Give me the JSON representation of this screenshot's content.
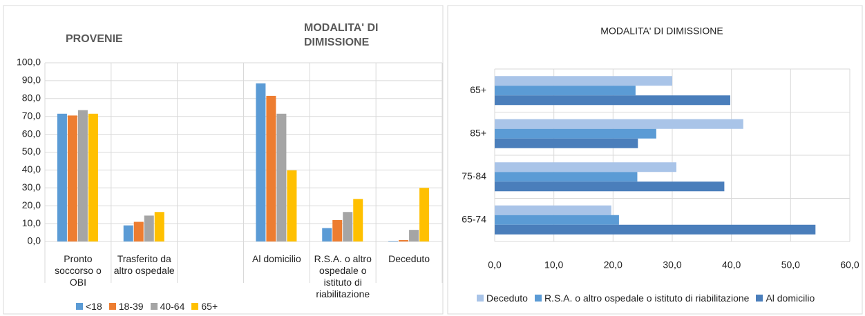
{
  "chart_data": [
    {
      "type": "bar",
      "annotations": [
        "PROVENIE",
        "MODALITA' DI DIMISSIONE"
      ],
      "categories": [
        "Pronto soccorso o OBI",
        "Trasferito da altro ospedale",
        null,
        "Al domicilio",
        "R.S.A. o altro ospedale o istituto di riabilitazione",
        "Deceduto"
      ],
      "series": [
        {
          "name": "<18",
          "color": "#5b9bd5",
          "values": [
            71.5,
            9,
            null,
            88.5,
            7.5,
            0.3
          ]
        },
        {
          "name": "18-39",
          "color": "#ed7d31",
          "values": [
            70.5,
            11,
            null,
            81.5,
            12,
            0.8
          ]
        },
        {
          "name": "40-64",
          "color": "#a5a5a5",
          "values": [
            73.5,
            14.5,
            null,
            71.5,
            16.5,
            6.5
          ]
        },
        {
          "name": "65+",
          "color": "#ffc000",
          "values": [
            71.5,
            16.5,
            null,
            39.8,
            23.8,
            30
          ]
        }
      ],
      "ylim": [
        0,
        100
      ],
      "yticks": [
        {
          "value": 0,
          "label": "0,0"
        },
        {
          "value": 10,
          "label": "10,0"
        },
        {
          "value": 20,
          "label": "20,0"
        },
        {
          "value": 30,
          "label": "30,0"
        },
        {
          "value": 40,
          "label": "40,0"
        },
        {
          "value": 50,
          "label": "50,0"
        },
        {
          "value": 60,
          "label": "60,0"
        },
        {
          "value": 70,
          "label": "70,0"
        },
        {
          "value": 80,
          "label": "80,0"
        },
        {
          "value": 90,
          "label": "90,0"
        },
        {
          "value": 100,
          "label": "100,0"
        }
      ],
      "grid": true,
      "legend": "bottom"
    },
    {
      "type": "hbar",
      "title": "MODALITA' DI DIMISSIONE",
      "categories": [
        "65+",
        "85+",
        "75-84",
        "65-74"
      ],
      "series": [
        {
          "name": "Deceduto",
          "color": "#a9c4e8",
          "values": [
            30,
            42,
            30.7,
            19.7
          ]
        },
        {
          "name": "R.S.A. o altro ospedale o istituto di riabilitazione",
          "color": "#5b9bd5",
          "values": [
            23.8,
            27.3,
            24.1,
            21
          ]
        },
        {
          "name": "Al domicilio",
          "color": "#4a7ebb",
          "values": [
            39.8,
            24.2,
            38.8,
            54.2
          ]
        }
      ],
      "xlim": [
        0,
        60
      ],
      "xticks": [
        {
          "value": 0,
          "label": "0,0"
        },
        {
          "value": 10,
          "label": "10,0"
        },
        {
          "value": 20,
          "label": "20,0"
        },
        {
          "value": 30,
          "label": "30,0"
        },
        {
          "value": 40,
          "label": "40,0"
        },
        {
          "value": 50,
          "label": "50,0"
        },
        {
          "value": 60,
          "label": "60,0"
        }
      ],
      "grid": true,
      "legend": "bottom"
    }
  ]
}
